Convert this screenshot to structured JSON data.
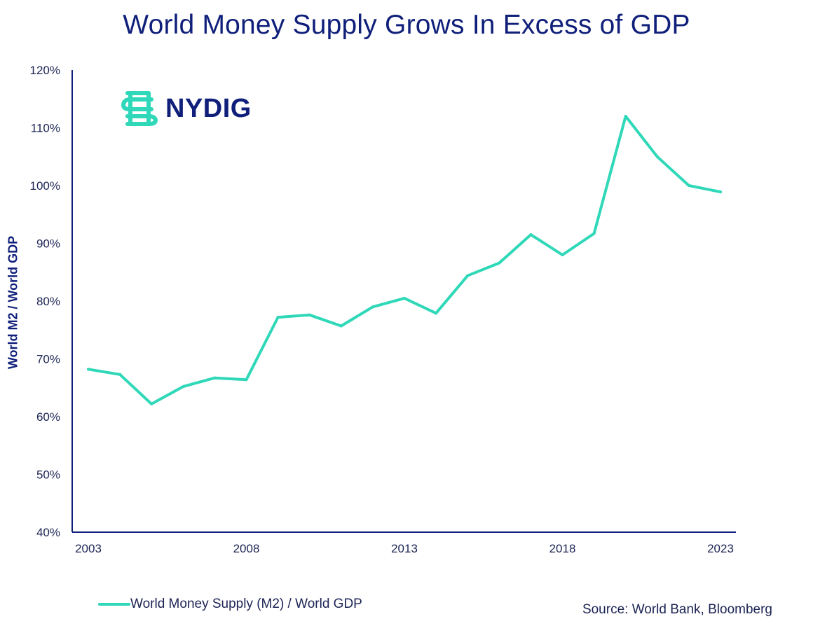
{
  "colors": {
    "title": "#0f1f7a",
    "axis": "#0f1f7a",
    "series": "#2fd8b8",
    "text": "#1c2454"
  },
  "logo": {
    "text": "NYDIG",
    "icon": "nydig-logo-icon"
  },
  "legend": {
    "label": "World Money Supply (M2) / World GDP"
  },
  "source": "Source: World Bank, Bloomberg",
  "chart_data": {
    "type": "line",
    "title": "World Money Supply Grows In Excess of GDP",
    "xlabel": "",
    "ylabel": "World M2 / World GDP",
    "xlim": [
      2003,
      2023
    ],
    "ylim": [
      40,
      120
    ],
    "y_ticks": [
      40,
      50,
      60,
      70,
      80,
      90,
      100,
      110,
      120
    ],
    "y_tick_labels": [
      "40%",
      "50%",
      "60%",
      "70%",
      "80%",
      "90%",
      "100%",
      "110%",
      "120%"
    ],
    "x_ticks": [
      2003,
      2008,
      2013,
      2018,
      2023
    ],
    "x_tick_labels": [
      "2003",
      "2008",
      "2013",
      "2018",
      "2023"
    ],
    "grid": false,
    "legend_position": "bottom-left",
    "series": [
      {
        "name": "World Money Supply (M2) / World GDP",
        "x": [
          2003,
          2004,
          2005,
          2006,
          2007,
          2008,
          2009,
          2010,
          2011,
          2012,
          2013,
          2014,
          2015,
          2016,
          2017,
          2018,
          2019,
          2020,
          2021,
          2022,
          2023
        ],
        "values": [
          68.2,
          67.3,
          62.2,
          65.2,
          66.7,
          66.4,
          77.2,
          77.6,
          75.7,
          79.0,
          80.5,
          77.9,
          84.4,
          86.6,
          91.5,
          88.0,
          91.7,
          112.0,
          105.0,
          100.0,
          98.9
        ]
      }
    ]
  }
}
